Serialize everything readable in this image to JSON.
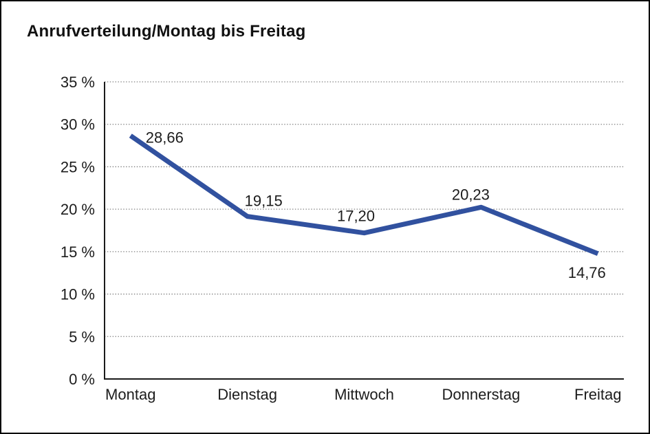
{
  "window": {
    "background": "#ffffff",
    "border_color": "#000000"
  },
  "chart_data": {
    "type": "line",
    "title": "Anrufverteilung/Montag bis Freitag",
    "categories": [
      "Montag",
      "Dienstag",
      "Mittwoch",
      "Donnerstag",
      "Freitag"
    ],
    "series": [
      {
        "values": [
          28.66,
          19.15,
          17.2,
          20.23,
          14.76
        ],
        "point_labels": [
          "28,66",
          "19,15",
          "17,20",
          "20,23",
          "14,76"
        ],
        "color": "#31519f"
      }
    ],
    "xlabel": "",
    "ylabel": "",
    "ylim": [
      0,
      35
    ],
    "ytick_step": 5,
    "yticks": [
      "0 %",
      "5 %",
      "10 %",
      "15 %",
      "20 %",
      "25 %",
      "30 %",
      "35 %"
    ],
    "grid": "horizontal-dotted",
    "legend": "none"
  },
  "colors": {
    "line": "#31519f",
    "grid": "#7d7d7d",
    "axis": "#1a1a1a",
    "text": "#1c1c1c"
  }
}
